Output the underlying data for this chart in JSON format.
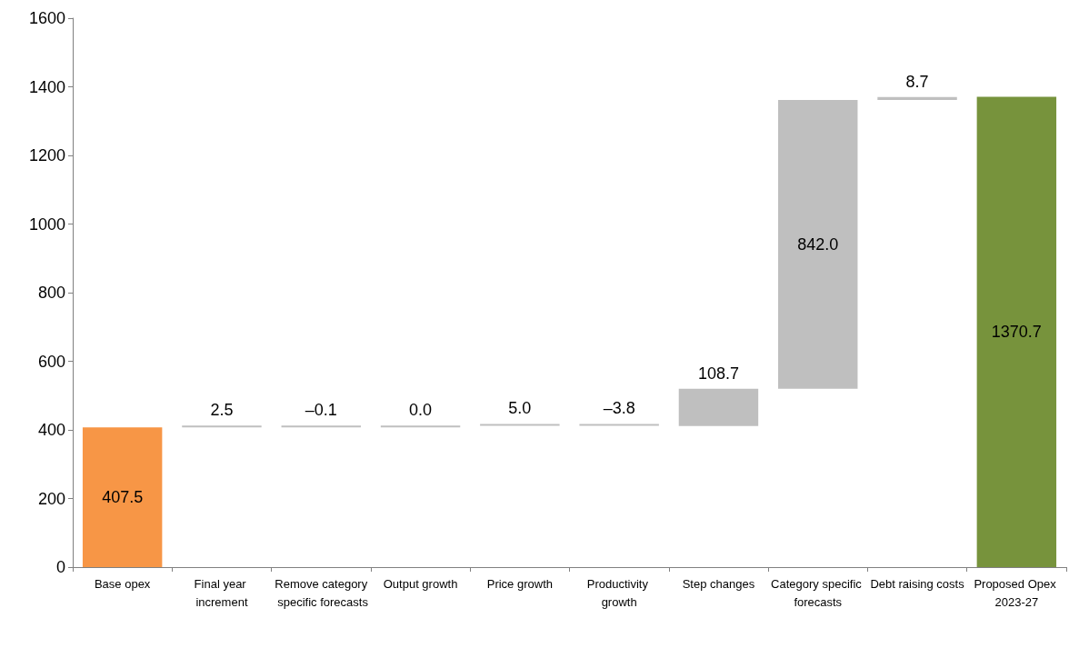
{
  "chart_data": {
    "type": "bar",
    "categories": [
      "Base opex",
      "Final year increment",
      "Remove category specific forecasts",
      "Output growth",
      "Price growth",
      "Productivity growth",
      "Step changes",
      "Category specific forecasts",
      "Debt raising costs",
      "Proposed Opex 2023-27"
    ],
    "values": [
      407.5,
      2.5,
      -0.1,
      0.0,
      5.0,
      -3.8,
      108.7,
      842.0,
      8.7,
      1370.7
    ],
    "base": [
      0,
      407.5,
      410.0,
      409.9,
      409.9,
      414.9,
      411.1,
      519.8,
      1361.8,
      0
    ],
    "value_labels": [
      "407.5",
      "2.5",
      "–0.1",
      "0.0",
      "5.0",
      "–3.8",
      "108.7",
      "842.0",
      "8.7",
      "1370.7"
    ],
    "colors": [
      "#f79646",
      "#bfbfbf",
      "#bfbfbf",
      "#bfbfbf",
      "#bfbfbf",
      "#bfbfbf",
      "#bfbfbf",
      "#bfbfbf",
      "#bfbfbf",
      "#77933c"
    ],
    "ylim": [
      0,
      1600
    ],
    "yticks": [
      0,
      200,
      400,
      600,
      800,
      1000,
      1200,
      1400,
      1600
    ],
    "grid": false
  }
}
